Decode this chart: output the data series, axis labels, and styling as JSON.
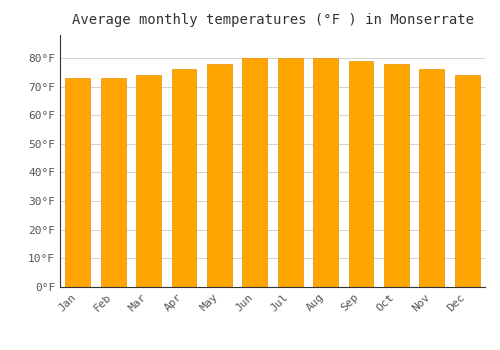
{
  "months": [
    "Jan",
    "Feb",
    "Mar",
    "Apr",
    "May",
    "Jun",
    "Jul",
    "Aug",
    "Sep",
    "Oct",
    "Nov",
    "Dec"
  ],
  "values": [
    73,
    73,
    74,
    76,
    78,
    80,
    80,
    80,
    79,
    78,
    76,
    74
  ],
  "bar_color": "#FFA500",
  "bar_edge_color": "#E89000",
  "title": "Average monthly temperatures (°F ) in Monserrate",
  "ylim": [
    0,
    88
  ],
  "yticks": [
    0,
    10,
    20,
    30,
    40,
    50,
    60,
    70,
    80
  ],
  "ytick_labels": [
    "0°F",
    "10°F",
    "20°F",
    "30°F",
    "40°F",
    "50°F",
    "60°F",
    "70°F",
    "80°F"
  ],
  "background_color": "#FFFFFF",
  "grid_color": "#CCCCCC",
  "title_fontsize": 10,
  "tick_fontsize": 8,
  "bar_width": 0.7
}
